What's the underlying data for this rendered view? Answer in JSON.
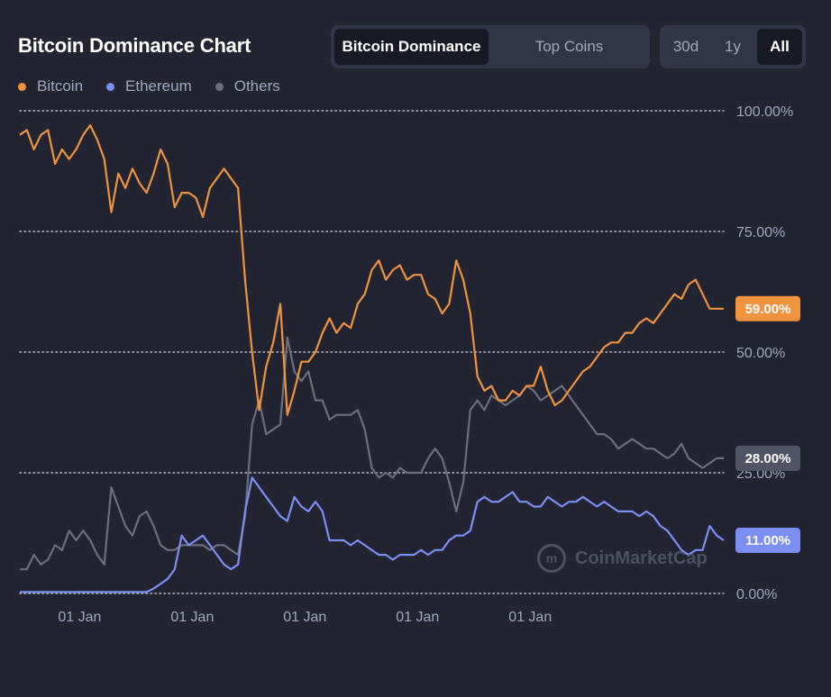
{
  "header": {
    "title": "Bitcoin Dominance Chart",
    "tabs": [
      "Bitcoin Dominance",
      "Top Coins"
    ],
    "active_tab": "Bitcoin Dominance",
    "ranges": [
      "30d",
      "1y",
      "All"
    ],
    "active_range": "All"
  },
  "legend": [
    {
      "label": "Bitcoin",
      "color": "#f0933e"
    },
    {
      "label": "Ethereum",
      "color": "#7b8ef2"
    },
    {
      "label": "Others",
      "color": "#6b6e7b"
    }
  ],
  "watermark": "CoinMarketCap",
  "chart_data": {
    "type": "line",
    "title": "Bitcoin Dominance Chart",
    "xlabel": "",
    "ylabel": "",
    "ylim": [
      0,
      100
    ],
    "y_ticks": [
      "100.00%",
      "75.00%",
      "50.00%",
      "25.00%",
      "0.00%"
    ],
    "x_ticks": [
      "01 Jan",
      "01 Jan",
      "01 Jan",
      "01 Jan",
      "01 Jan"
    ],
    "x_range": [
      0,
      100
    ],
    "x_tick_positions": [
      8.5,
      24.5,
      40.5,
      56.5,
      72.5
    ],
    "grid": "horizontal-dotted",
    "legend_position": "top-left",
    "current_values": [
      {
        "label": "59.00%",
        "color": "#f0933e",
        "value": 59
      },
      {
        "label": "28.00%",
        "color": "#515464",
        "value": 28
      },
      {
        "label": "11.00%",
        "color": "#7b8ef2",
        "value": 11
      }
    ],
    "series": [
      {
        "name": "Bitcoin",
        "color": "#f0933e",
        "points": [
          [
            0,
            95
          ],
          [
            1,
            96
          ],
          [
            2,
            92
          ],
          [
            3,
            95
          ],
          [
            4,
            96
          ],
          [
            5,
            89
          ],
          [
            6,
            92
          ],
          [
            7,
            90
          ],
          [
            8,
            92
          ],
          [
            9,
            95
          ],
          [
            10,
            97
          ],
          [
            11,
            94
          ],
          [
            12,
            90
          ],
          [
            13,
            79
          ],
          [
            14,
            87
          ],
          [
            15,
            84
          ],
          [
            16,
            88
          ],
          [
            17,
            85
          ],
          [
            18,
            83
          ],
          [
            19,
            87
          ],
          [
            20,
            92
          ],
          [
            21,
            89
          ],
          [
            22,
            80
          ],
          [
            23,
            83
          ],
          [
            24,
            83
          ],
          [
            25,
            82
          ],
          [
            26,
            78
          ],
          [
            27,
            84
          ],
          [
            28,
            86
          ],
          [
            29,
            88
          ],
          [
            30,
            86
          ],
          [
            31,
            84
          ],
          [
            32,
            65
          ],
          [
            33,
            50
          ],
          [
            34,
            38
          ],
          [
            35,
            47
          ],
          [
            36,
            52
          ],
          [
            37,
            60
          ],
          [
            38,
            37
          ],
          [
            39,
            42
          ],
          [
            40,
            48
          ],
          [
            41,
            48
          ],
          [
            42,
            50
          ],
          [
            43,
            54
          ],
          [
            44,
            57
          ],
          [
            45,
            54
          ],
          [
            46,
            56
          ],
          [
            47,
            55
          ],
          [
            48,
            60
          ],
          [
            49,
            62
          ],
          [
            50,
            67
          ],
          [
            51,
            69
          ],
          [
            52,
            65
          ],
          [
            53,
            67
          ],
          [
            54,
            68
          ],
          [
            55,
            65
          ],
          [
            56,
            66
          ],
          [
            57,
            66
          ],
          [
            58,
            62
          ],
          [
            59,
            61
          ],
          [
            60,
            58
          ],
          [
            61,
            60
          ],
          [
            62,
            69
          ],
          [
            63,
            65
          ],
          [
            64,
            58
          ],
          [
            65,
            45
          ],
          [
            66,
            42
          ],
          [
            67,
            43
          ],
          [
            68,
            40
          ],
          [
            69,
            40
          ],
          [
            70,
            42
          ],
          [
            71,
            41
          ],
          [
            72,
            43
          ],
          [
            73,
            43
          ],
          [
            74,
            47
          ],
          [
            75,
            42
          ],
          [
            76,
            39
          ],
          [
            77,
            40
          ],
          [
            78,
            42
          ],
          [
            79,
            44
          ],
          [
            80,
            46
          ],
          [
            81,
            47
          ],
          [
            82,
            49
          ],
          [
            83,
            51
          ],
          [
            84,
            52
          ],
          [
            85,
            52
          ],
          [
            86,
            54
          ],
          [
            87,
            54
          ],
          [
            88,
            56
          ],
          [
            89,
            57
          ],
          [
            90,
            56
          ],
          [
            91,
            58
          ],
          [
            92,
            60
          ],
          [
            93,
            62
          ],
          [
            94,
            61
          ],
          [
            95,
            64
          ],
          [
            96,
            65
          ],
          [
            97,
            62
          ],
          [
            98,
            59
          ],
          [
            99,
            59
          ],
          [
            100,
            59
          ]
        ]
      },
      {
        "name": "Ethereum",
        "color": "#7b8ef2",
        "points": [
          [
            0,
            0.3
          ],
          [
            5,
            0.3
          ],
          [
            10,
            0.3
          ],
          [
            18,
            0.3
          ],
          [
            19,
            1
          ],
          [
            20,
            2
          ],
          [
            21,
            3
          ],
          [
            22,
            5
          ],
          [
            23,
            12
          ],
          [
            24,
            10
          ],
          [
            25,
            11
          ],
          [
            26,
            12
          ],
          [
            27,
            10
          ],
          [
            28,
            8
          ],
          [
            29,
            6
          ],
          [
            30,
            5
          ],
          [
            31,
            6
          ],
          [
            32,
            17
          ],
          [
            33,
            24
          ],
          [
            34,
            22
          ],
          [
            35,
            20
          ],
          [
            36,
            18
          ],
          [
            37,
            16
          ],
          [
            38,
            15
          ],
          [
            39,
            20
          ],
          [
            40,
            18
          ],
          [
            41,
            17
          ],
          [
            42,
            19
          ],
          [
            43,
            17
          ],
          [
            44,
            11
          ],
          [
            45,
            11
          ],
          [
            46,
            11
          ],
          [
            47,
            10
          ],
          [
            48,
            11
          ],
          [
            49,
            10
          ],
          [
            50,
            9
          ],
          [
            51,
            8
          ],
          [
            52,
            8
          ],
          [
            53,
            7
          ],
          [
            54,
            8
          ],
          [
            55,
            8
          ],
          [
            56,
            8
          ],
          [
            57,
            9
          ],
          [
            58,
            8
          ],
          [
            59,
            9
          ],
          [
            60,
            9
          ],
          [
            61,
            11
          ],
          [
            62,
            12
          ],
          [
            63,
            12
          ],
          [
            64,
            13
          ],
          [
            65,
            19
          ],
          [
            66,
            20
          ],
          [
            67,
            19
          ],
          [
            68,
            19
          ],
          [
            69,
            20
          ],
          [
            70,
            21
          ],
          [
            71,
            19
          ],
          [
            72,
            19
          ],
          [
            73,
            18
          ],
          [
            74,
            18
          ],
          [
            75,
            20
          ],
          [
            76,
            19
          ],
          [
            77,
            18
          ],
          [
            78,
            19
          ],
          [
            79,
            19
          ],
          [
            80,
            20
          ],
          [
            81,
            19
          ],
          [
            82,
            18
          ],
          [
            83,
            19
          ],
          [
            84,
            18
          ],
          [
            85,
            17
          ],
          [
            86,
            17
          ],
          [
            87,
            17
          ],
          [
            88,
            16
          ],
          [
            89,
            17
          ],
          [
            90,
            16
          ],
          [
            91,
            14
          ],
          [
            92,
            13
          ],
          [
            93,
            11
          ],
          [
            94,
            9
          ],
          [
            95,
            8
          ],
          [
            96,
            9
          ],
          [
            97,
            9
          ],
          [
            98,
            14
          ],
          [
            99,
            12
          ],
          [
            100,
            11
          ]
        ]
      },
      {
        "name": "Others",
        "color": "#6b6e7b",
        "points": [
          [
            0,
            5
          ],
          [
            1,
            5
          ],
          [
            2,
            8
          ],
          [
            3,
            6
          ],
          [
            4,
            7
          ],
          [
            5,
            10
          ],
          [
            6,
            9
          ],
          [
            7,
            13
          ],
          [
            8,
            11
          ],
          [
            9,
            13
          ],
          [
            10,
            11
          ],
          [
            11,
            8
          ],
          [
            12,
            6
          ],
          [
            13,
            22
          ],
          [
            14,
            18
          ],
          [
            15,
            14
          ],
          [
            16,
            12
          ],
          [
            17,
            16
          ],
          [
            18,
            17
          ],
          [
            19,
            14
          ],
          [
            20,
            10
          ],
          [
            21,
            9
          ],
          [
            22,
            9
          ],
          [
            23,
            10
          ],
          [
            24,
            10
          ],
          [
            25,
            10
          ],
          [
            26,
            10
          ],
          [
            27,
            9
          ],
          [
            28,
            10
          ],
          [
            29,
            10
          ],
          [
            30,
            9
          ],
          [
            31,
            8
          ],
          [
            32,
            16
          ],
          [
            33,
            35
          ],
          [
            34,
            40
          ],
          [
            35,
            33
          ],
          [
            36,
            34
          ],
          [
            37,
            35
          ],
          [
            38,
            53
          ],
          [
            39,
            46
          ],
          [
            40,
            44
          ],
          [
            41,
            46
          ],
          [
            42,
            40
          ],
          [
            43,
            40
          ],
          [
            44,
            36
          ],
          [
            45,
            37
          ],
          [
            46,
            37
          ],
          [
            47,
            37
          ],
          [
            48,
            38
          ],
          [
            49,
            34
          ],
          [
            50,
            26
          ],
          [
            51,
            24
          ],
          [
            52,
            25
          ],
          [
            53,
            24
          ],
          [
            54,
            26
          ],
          [
            55,
            25
          ],
          [
            56,
            25
          ],
          [
            57,
            25
          ],
          [
            58,
            28
          ],
          [
            59,
            30
          ],
          [
            60,
            28
          ],
          [
            61,
            23
          ],
          [
            62,
            17
          ],
          [
            63,
            23
          ],
          [
            64,
            38
          ],
          [
            65,
            40
          ],
          [
            66,
            38
          ],
          [
            67,
            41
          ],
          [
            68,
            40
          ],
          [
            69,
            39
          ],
          [
            70,
            40
          ],
          [
            71,
            41
          ],
          [
            72,
            43
          ],
          [
            73,
            42
          ],
          [
            74,
            40
          ],
          [
            75,
            41
          ],
          [
            76,
            42
          ],
          [
            77,
            43
          ],
          [
            78,
            41
          ],
          [
            79,
            39
          ],
          [
            80,
            37
          ],
          [
            81,
            35
          ],
          [
            82,
            33
          ],
          [
            83,
            33
          ],
          [
            84,
            32
          ],
          [
            85,
            30
          ],
          [
            86,
            31
          ],
          [
            87,
            32
          ],
          [
            88,
            31
          ],
          [
            89,
            30
          ],
          [
            90,
            30
          ],
          [
            91,
            29
          ],
          [
            92,
            28
          ],
          [
            93,
            29
          ],
          [
            94,
            31
          ],
          [
            95,
            28
          ],
          [
            96,
            27
          ],
          [
            97,
            26
          ],
          [
            98,
            27
          ],
          [
            99,
            28
          ],
          [
            100,
            28
          ]
        ]
      }
    ]
  }
}
